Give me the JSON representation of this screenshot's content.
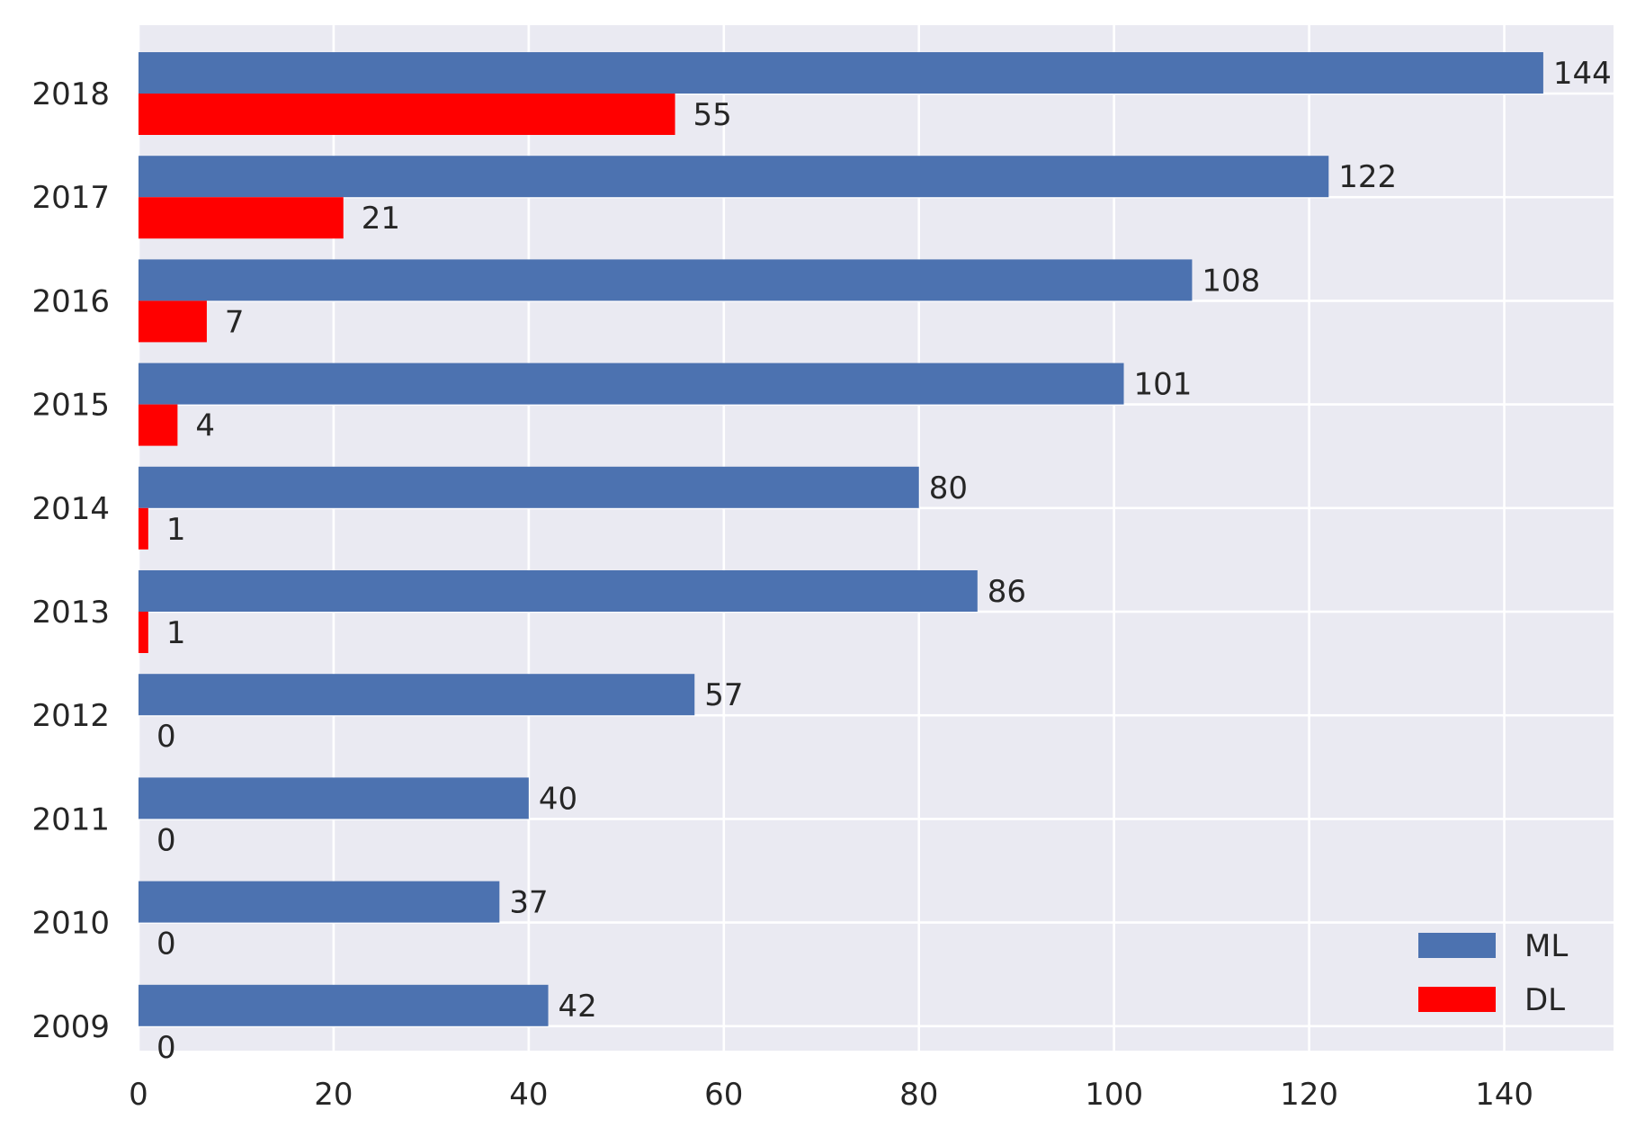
{
  "chart_data": {
    "type": "bar",
    "orientation": "horizontal",
    "categories": [
      "2009",
      "2010",
      "2011",
      "2012",
      "2013",
      "2014",
      "2015",
      "2016",
      "2017",
      "2018"
    ],
    "series": [
      {
        "name": "ML",
        "color": "#4c72b0",
        "values": [
          42,
          37,
          40,
          57,
          86,
          80,
          101,
          108,
          122,
          144
        ]
      },
      {
        "name": "DL",
        "color": "#ff0000",
        "values": [
          0,
          0,
          0,
          0,
          1,
          1,
          4,
          7,
          21,
          55
        ]
      }
    ],
    "data_labels": true,
    "title": "",
    "xlabel": "",
    "ylabel": "",
    "xlim": [
      0,
      151.2
    ],
    "xticks": [
      0,
      20,
      40,
      60,
      80,
      100,
      120,
      140
    ],
    "grid": true,
    "legend": "lower-right",
    "background": "#eaeaf2",
    "grid_color": "#ffffff"
  }
}
